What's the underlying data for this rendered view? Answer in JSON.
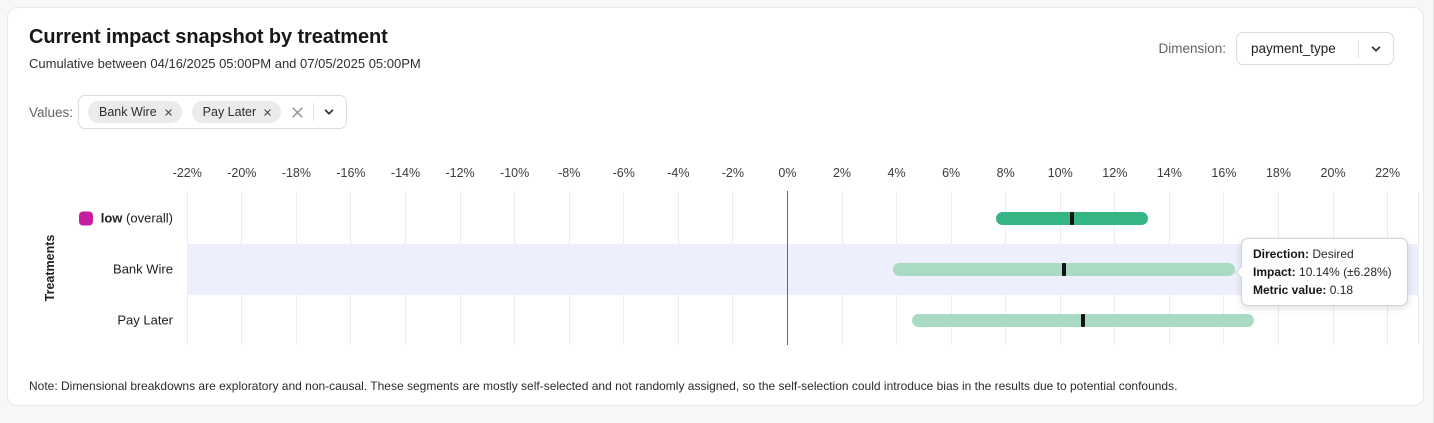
{
  "card": {
    "title": "Current impact snapshot by treatment",
    "subtitle": "Cumulative between 04/16/2025 05:00PM and 07/05/2025 05:00PM",
    "note": "Note: Dimensional breakdowns are exploratory and non-causal. These segments are mostly self-selected and not randomly assigned, so the self-selection could introduce bias in the results due to potential confounds."
  },
  "dimension": {
    "label": "Dimension:",
    "selected": "payment_type"
  },
  "values_filter": {
    "label": "Values:",
    "chips": [
      {
        "label": "Bank Wire"
      },
      {
        "label": "Pay Later"
      }
    ]
  },
  "colors": {
    "highlight_band": "#eeeffc",
    "gridline": "#ececee",
    "zero_line": "#68696b",
    "bar_center_tick": "#111214",
    "overall_bar": "#35b584",
    "segment_bar": "#a8dbc2",
    "legend_swatch": "#c71ea0"
  },
  "chart_data": {
    "type": "range_bar",
    "title": "Current impact snapshot by treatment",
    "ylabel": "Treatments",
    "xlabel": "",
    "x_tick_suffix": "%",
    "x_ticks": [
      -22,
      -20,
      -18,
      -16,
      -14,
      -12,
      -10,
      -8,
      -6,
      -4,
      -2,
      0,
      2,
      4,
      6,
      8,
      10,
      12,
      14,
      16,
      18,
      20,
      22
    ],
    "xlim": [
      -23,
      23.15
    ],
    "grid": true,
    "rows": [
      {
        "label_bold": "low",
        "label_suffix": "(overall)",
        "swatch_color": "#c71ea0",
        "bar_color": "#35b584",
        "impact_pct": 10.42,
        "ci_pct": 2.79,
        "highlighted": false
      },
      {
        "label": "Bank Wire",
        "bar_color": "#a8dbc2",
        "impact_pct": 10.14,
        "ci_pct": 6.28,
        "direction": "Desired",
        "metric_value": 0.18,
        "highlighted": true
      },
      {
        "label": "Pay Later",
        "bar_color": "#a8dbc2",
        "impact_pct": 10.83,
        "ci_pct": 6.28,
        "highlighted": false
      }
    ],
    "tooltip": {
      "target_row": "Bank Wire",
      "direction_label": "Direction:",
      "direction_value": "Desired",
      "impact_label": "Impact:",
      "impact_value": "10.14% (±6.28%)",
      "metric_label": "Metric value:",
      "metric_value": "0.18"
    }
  }
}
